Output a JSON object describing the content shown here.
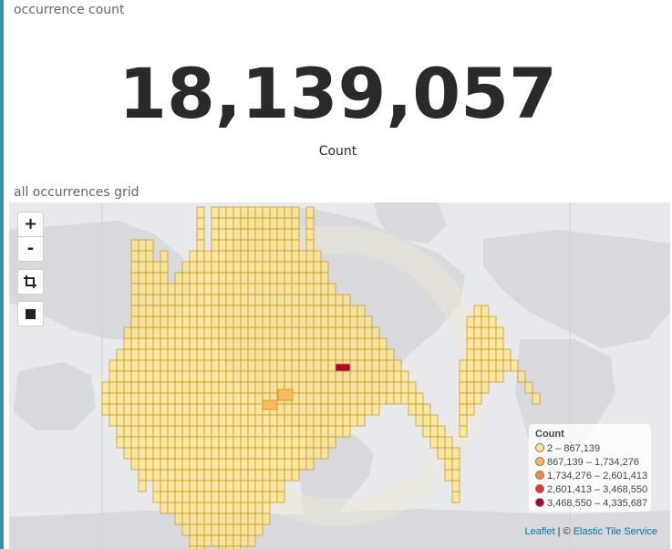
{
  "panels": {
    "metric": {
      "title": "occurrence count",
      "value": "18,139,057",
      "label": "Count"
    },
    "map": {
      "title": "all occurrences grid"
    }
  },
  "map_controls": {
    "zoom_in_label": "+",
    "zoom_out_label": "-",
    "crop_icon": "crop-icon",
    "stop_icon": "square-icon"
  },
  "legend": {
    "title": "Count",
    "items": [
      {
        "label": "2 – 867,139",
        "color": "#fee48a"
      },
      {
        "label": "867,139 – 1,734,276",
        "color": "#fdb85a"
      },
      {
        "label": "1,734,276 – 2,601,413",
        "color": "#f98a3d"
      },
      {
        "label": "2,601,413 – 3,468,550",
        "color": "#e83427"
      },
      {
        "label": "3,468,550 – 4,335,687",
        "color": "#b2002f"
      }
    ]
  },
  "attribution": {
    "leaflet": "Leaflet",
    "separator": " | © ",
    "tiles": "Elastic Tile Service"
  },
  "colors": {
    "grid_fill": "#fee48a",
    "grid_stroke": "#c89b28",
    "land": "#d8d9dc",
    "water": "#e8e9ec"
  }
}
